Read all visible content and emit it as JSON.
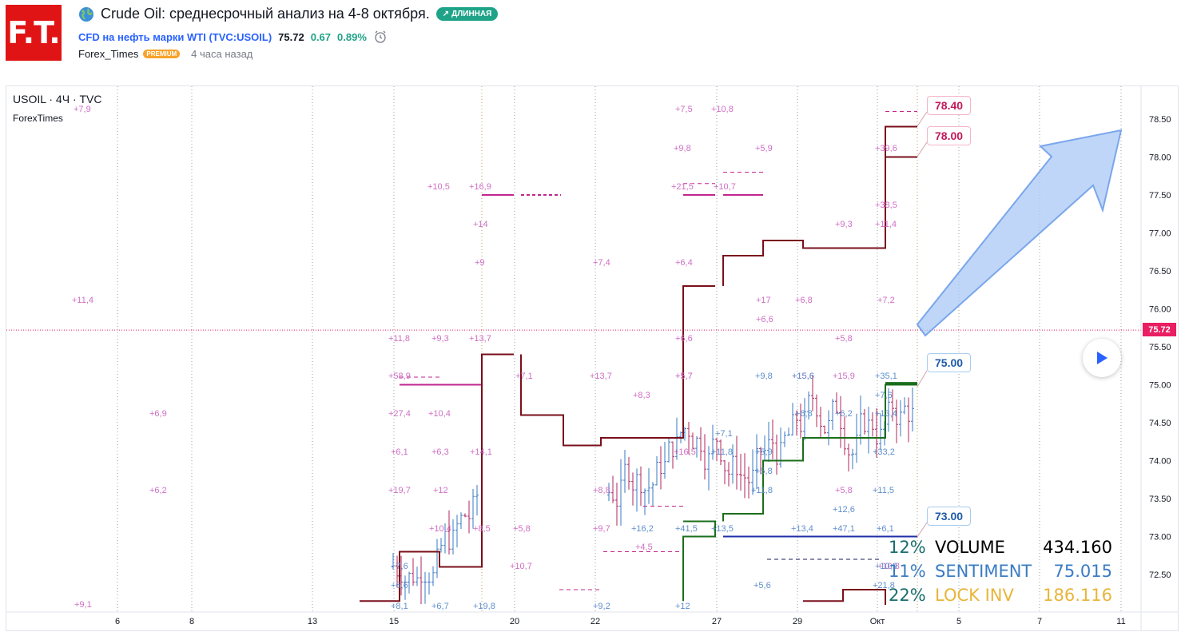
{
  "header": {
    "logo_text": "F.T.",
    "title": "Crude Oil: среднесрочный анализ на 4-8 октября.",
    "badge_long": "ДЛИННАЯ",
    "symbol_desc": "CFD на нефть марки WTI (TVC:USOIL)",
    "price": "75.72",
    "change": "0.67",
    "change_pct": "0.89%",
    "author": "Forex_Times",
    "premium": "PREMIUM",
    "time_ago": "4 часа назад"
  },
  "chart_header": {
    "symbol": "USOIL · 4Ч · TVC",
    "indicator": "ForexTimes"
  },
  "price_axis": [
    "78.50",
    "78.00",
    "77.50",
    "77.00",
    "76.50",
    "76.00",
    "75.50",
    "75.00",
    "74.50",
    "74.00",
    "73.50",
    "73.00",
    "72.50"
  ],
  "current_price_tag": "75.72",
  "time_axis": [
    "6",
    "8",
    "13",
    "15",
    "20",
    "22",
    "27",
    "29",
    "Окт",
    "5",
    "7",
    "11"
  ],
  "callouts": {
    "c1": "78.40",
    "c2": "78.00",
    "c3": "75.00",
    "c4": "73.00"
  },
  "stats": [
    {
      "pct": "12%",
      "name": "VOLUME",
      "value": "434.160"
    },
    {
      "pct": "11%",
      "name": "SENTIMENT",
      "value": "75.015"
    },
    {
      "pct": "22%",
      "name": "LOCK INV",
      "value": "186.116"
    }
  ],
  "annotations_pink": [
    "+7,9",
    "+11,4",
    "+9,1",
    "+6,9",
    "+6,2",
    "+10,5",
    "+16,9",
    "+14",
    "+9",
    "+11,8",
    "+9,3",
    "+13,7",
    "+58,9",
    "+7,1",
    "+27,4",
    "+10,4",
    "+6,1",
    "+6,3",
    "+14,1",
    "+19,7",
    "+12",
    "+10,4",
    "+8,5",
    "+5,8",
    "+10,7",
    "+7,4",
    "+13,7",
    "+8,3",
    "+5,7",
    "+8,8",
    "+9,7",
    "+7,5",
    "+10,8",
    "+9,8",
    "+5,9",
    "+21,5",
    "+10,7",
    "+6,4",
    "+6,6",
    "+5,7",
    "+16,5",
    "+17",
    "+6,6",
    "+6,8",
    "+5,8",
    "+15,6",
    "+15,9",
    "+9,3",
    "+11,4",
    "+38,5",
    "+39,6",
    "+7,2",
    "+5,8",
    "+10,8",
    "+4,5"
  ],
  "annotations_blue": [
    "+7,6",
    "+6,6",
    "+8,1",
    "+6,7",
    "+19,8",
    "+9,2",
    "+16,2",
    "+41,5",
    "+12",
    "+13,5",
    "+11,8",
    "+7,1",
    "+9,8",
    "+5,9",
    "+5,8",
    "+11,8",
    "+15,6",
    "+6,8",
    "+13,4",
    "+47,1",
    "+6,1",
    "+11,5",
    "+12,6",
    "+33,2",
    "+6,2",
    "+7,6",
    "+35,1",
    "+13,4",
    "+10,9",
    "+21,8",
    "+5,6"
  ],
  "colors": {
    "pink_text": "#cf6fc4",
    "blue_text": "#5f8fcc",
    "step_dark_red": "#7a0f1a",
    "step_green": "#1b6e1b",
    "level_blue": "#1f2fa8",
    "level_pink": "#c2268f",
    "arrow_fill": "#aac8f5",
    "arrow_stroke": "#7aa6eb",
    "price_line": "#e91e63"
  }
}
